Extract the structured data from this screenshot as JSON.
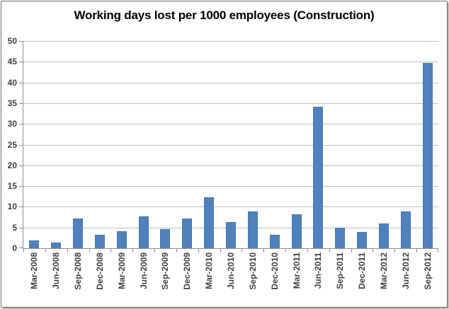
{
  "chart_data": {
    "type": "bar",
    "title": "Working days lost per 1000 employees (Construction)",
    "categories": [
      "Mar-2008",
      "Jun-2008",
      "Sep-2008",
      "Dec-2008",
      "Mar-2009",
      "Jun-2009",
      "Sep-2009",
      "Dec-2009",
      "Mar-2010",
      "Jun-2010",
      "Sep-2010",
      "Dec-2010",
      "Mar-2011",
      "Jun-2011",
      "Sep-2011",
      "Dec-2011",
      "Mar-2012",
      "Jun-2012",
      "Sep-2012"
    ],
    "values": [
      1.8,
      1.3,
      7.1,
      3.2,
      4.1,
      7.6,
      4.6,
      7.1,
      12.3,
      6.4,
      8.9,
      3.2,
      8.2,
      34.2,
      4.9,
      3.9,
      5.9,
      8.9,
      44.7
    ],
    "xlabel": "",
    "ylabel": "",
    "ylim": [
      0,
      50
    ],
    "y_tick_step": 5,
    "grid": true,
    "legend_position": "none",
    "bar_color": "#4F81BD",
    "bar_border_color": "#4A77AD",
    "gridline_color": "#BDBDBD",
    "axis_color": "#8C8C8C",
    "label_color": "#3F3F3F",
    "title_color": "#000000",
    "background_color": "#FFFFFF"
  }
}
